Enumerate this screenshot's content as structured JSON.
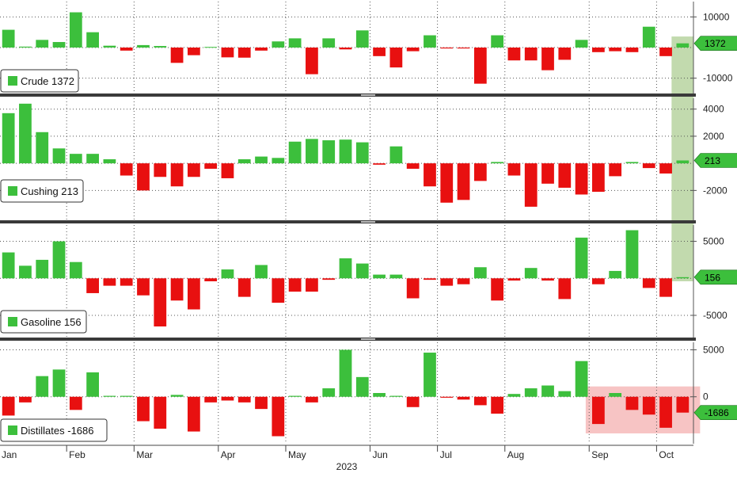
{
  "colors": {
    "up": "#3cbf3c",
    "down": "#e81010",
    "highlight_green": "#b7d4a0",
    "highlight_red": "#f4b0b0",
    "separator": "#3a3a3a",
    "grid": "#555555"
  },
  "x_axis": {
    "months": [
      "Jan",
      "Feb",
      "Mar",
      "Apr",
      "May",
      "Jun",
      "Jul",
      "Aug",
      "Sep",
      "Oct"
    ],
    "month_start_index": [
      0,
      4,
      8,
      13,
      17,
      22,
      26,
      30,
      35,
      39
    ],
    "year_label": "2023"
  },
  "chart_data": [
    {
      "type": "bar",
      "name": "Crude",
      "legend": "Crude",
      "last_value_label": "1372",
      "ylim": [
        -15000,
        15000
      ],
      "yticks": [
        10000,
        -10000
      ],
      "ytick_labels": [
        "10000",
        "-10000"
      ],
      "values": [
        5800,
        300,
        2500,
        1800,
        11500,
        5000,
        600,
        -1000,
        800,
        500,
        -5000,
        -2500,
        200,
        -3200,
        -3300,
        -1000,
        2000,
        3000,
        -8700,
        3000,
        -600,
        5600,
        -2800,
        -6500,
        -1200,
        4000,
        -300,
        -300,
        -11800,
        4000,
        -4200,
        -4200,
        -7400,
        -4000,
        2500,
        -1500,
        -1200,
        -1500,
        6800,
        -2800,
        1372
      ]
    },
    {
      "type": "bar",
      "name": "Cushing",
      "legend": "Cushing",
      "last_value_label": "213",
      "ylim": [
        -4200,
        4800
      ],
      "yticks": [
        4000,
        2000,
        -2000
      ],
      "ytick_labels": [
        "4000",
        "2000",
        "-2000"
      ],
      "values": [
        3700,
        4400,
        2300,
        1100,
        700,
        700,
        300,
        -900,
        -2000,
        -1000,
        -1700,
        -1000,
        -400,
        -1100,
        300,
        500,
        400,
        1600,
        1800,
        1700,
        1750,
        1550,
        -100,
        1250,
        -400,
        -1700,
        -2900,
        -2700,
        -1300,
        100,
        -900,
        -3200,
        -1500,
        -1800,
        -2300,
        -2100,
        -950,
        100,
        -350,
        -750,
        213
      ]
    },
    {
      "type": "bar",
      "name": "Gasoline",
      "legend": "Gasoline",
      "last_value_label": "156",
      "ylim": [
        -8000,
        7200
      ],
      "yticks": [
        5000,
        -5000
      ],
      "ytick_labels": [
        "5000",
        "-5000"
      ],
      "values": [
        3500,
        1700,
        2500,
        5000,
        2200,
        -2000,
        -1000,
        -1000,
        -2300,
        -6500,
        -3000,
        -4200,
        -400,
        1200,
        -2500,
        1800,
        -3300,
        -1800,
        -1800,
        -200,
        2700,
        2000,
        500,
        500,
        -2700,
        -200,
        -1000,
        -800,
        1500,
        -3000,
        -300,
        1400,
        -300,
        -2800,
        5500,
        -800,
        1000,
        6500,
        -1300,
        -2500,
        156
      ]
    },
    {
      "type": "bar",
      "name": "Distillates",
      "legend": "Distillates",
      "last_value_label": "-1686",
      "ylim": [
        -5000,
        5800
      ],
      "yticks": [
        5000,
        0
      ],
      "ytick_labels": [
        "5000",
        "0"
      ],
      "values": [
        -2000,
        -600,
        2200,
        2900,
        -1400,
        2600,
        100,
        100,
        -2600,
        -3400,
        200,
        -3700,
        -600,
        -400,
        -600,
        -1300,
        -4200,
        100,
        -600,
        900,
        5000,
        2100,
        400,
        100,
        -1100,
        4700,
        -100,
        -300,
        -900,
        -1800,
        300,
        900,
        1200,
        600,
        3800,
        -2900,
        400,
        -1400,
        -1900,
        -3300,
        -1686
      ]
    }
  ]
}
